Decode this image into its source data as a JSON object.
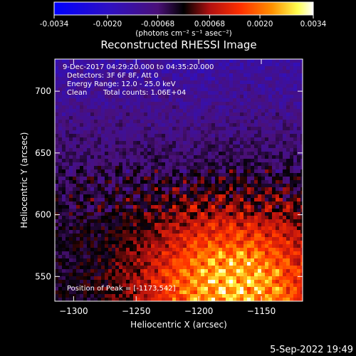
{
  "colorbar": {
    "tick_labels": [
      "-0.0034",
      "-0.0020",
      "-0.00068",
      "0.00068",
      "0.0020",
      "0.0034"
    ],
    "tick_values": [
      -0.0034,
      -0.002,
      -0.00068,
      0.00068,
      0.002,
      0.0034
    ],
    "range": [
      -0.0034,
      0.0034
    ],
    "units_label": "(photons cm⁻² s⁻¹ asec⁻²)",
    "colormap": [
      "#0000ff",
      "#3c1aa8",
      "#5a1a8c",
      "#000000",
      "#a01010",
      "#ff3000",
      "#ff9000",
      "#ffff60",
      "#ffffff"
    ]
  },
  "chart_data": {
    "type": "heatmap",
    "title": "Reconstructed RHESSI Image",
    "xlabel": "Heliocentric X (arcsec)",
    "ylabel": "Heliocentric Y (arcsec)",
    "xlim": [
      -1315,
      -1117
    ],
    "ylim": [
      530,
      726
    ],
    "x_ticks": [
      -1300,
      -1250,
      -1200,
      -1150
    ],
    "x_tick_labels": [
      "−1300",
      "−1250",
      "−1200",
      "−1150"
    ],
    "y_ticks": [
      550,
      600,
      650,
      700
    ],
    "y_tick_labels": [
      "550",
      "600",
      "650",
      "700"
    ],
    "peak": [
      -1173,
      542
    ],
    "annotations": {
      "time_range": "9-Dec-2017 04:29:20.000 to 04:35:20.000",
      "detectors": "Detectors: 3F 6F 8F, Att 0",
      "energy": "Energy Range: 12.0 - 25.0 keV",
      "method": "Clean",
      "counts": "Total counts: 1.06E+04",
      "peak_label": "Position of Peak = [-1173,542]"
    }
  },
  "footer": {
    "timestamp": "5-Sep-2022 19:49"
  }
}
